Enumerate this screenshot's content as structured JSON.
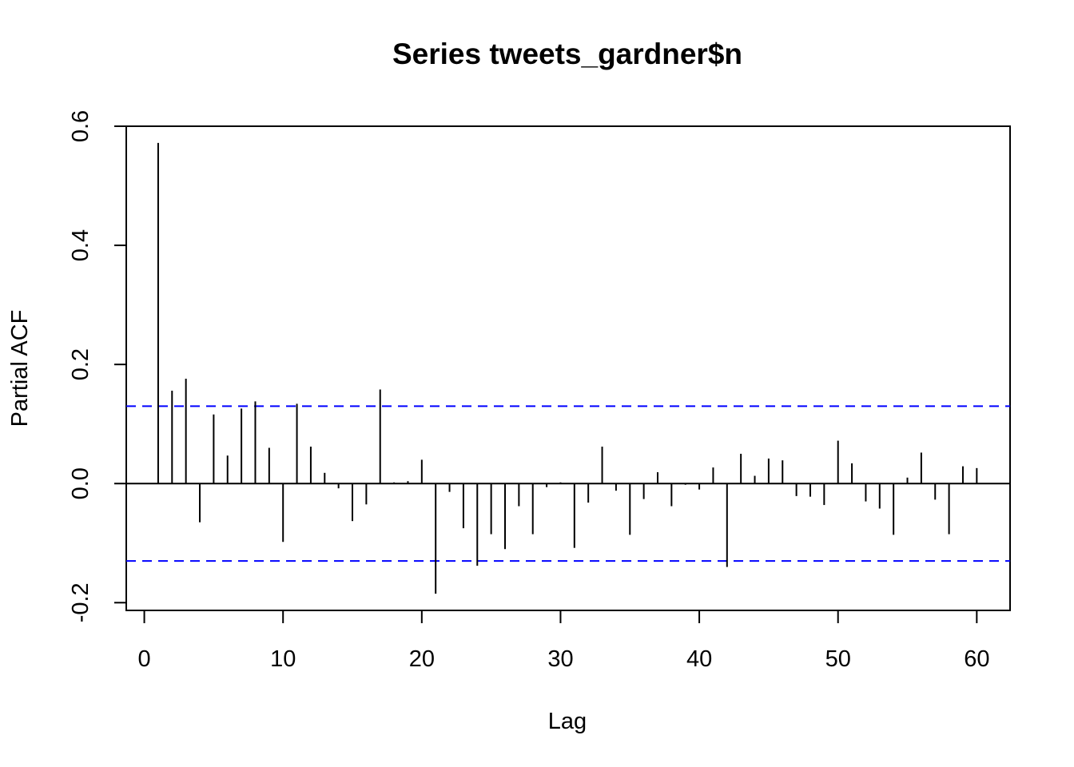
{
  "chart_data": {
    "type": "bar",
    "title": "Series  tweets_gardner$n",
    "xlabel": "Lag",
    "ylabel": "Partial ACF",
    "xlim": [
      -1.3,
      62.4
    ],
    "ylim": [
      -0.213,
      0.6
    ],
    "x_ticks": [
      0,
      10,
      20,
      30,
      40,
      50,
      60
    ],
    "x_tick_labels": [
      "0",
      "10",
      "20",
      "30",
      "40",
      "50",
      "60"
    ],
    "y_ticks": [
      -0.2,
      0.0,
      0.2,
      0.4,
      0.6
    ],
    "y_tick_labels": [
      "-0.2",
      "0.0",
      "0.2",
      "0.4",
      "0.6"
    ],
    "confidence_bound": 0.13,
    "confidence_color": "#0000ff",
    "bar_color": "#000000",
    "zero_line_color": "#000000",
    "lags": [
      1,
      2,
      3,
      4,
      5,
      6,
      7,
      8,
      9,
      10,
      11,
      12,
      13,
      14,
      15,
      16,
      17,
      18,
      19,
      20,
      21,
      22,
      23,
      24,
      25,
      26,
      27,
      28,
      29,
      30,
      31,
      32,
      33,
      34,
      35,
      36,
      37,
      38,
      39,
      40,
      41,
      42,
      43,
      44,
      45,
      46,
      47,
      48,
      49,
      50,
      51,
      52,
      53,
      54,
      55,
      56,
      57,
      58,
      59,
      60
    ],
    "values": [
      0.572,
      0.156,
      0.176,
      -0.065,
      0.116,
      0.047,
      0.126,
      0.138,
      0.06,
      -0.098,
      0.134,
      0.062,
      0.018,
      -0.008,
      -0.063,
      -0.035,
      0.158,
      0.002,
      0.004,
      0.04,
      -0.185,
      -0.014,
      -0.075,
      -0.138,
      -0.085,
      -0.11,
      -0.038,
      -0.085,
      -0.006,
      0.002,
      -0.108,
      -0.032,
      0.062,
      -0.012,
      -0.086,
      -0.026,
      0.019,
      -0.038,
      -0.002,
      -0.01,
      0.027,
      -0.14,
      0.05,
      0.013,
      0.042,
      0.039,
      -0.021,
      -0.022,
      -0.036,
      0.072,
      0.034,
      -0.03,
      -0.042,
      -0.086,
      0.01,
      0.052,
      -0.027,
      -0.085,
      0.029,
      0.026
    ]
  }
}
